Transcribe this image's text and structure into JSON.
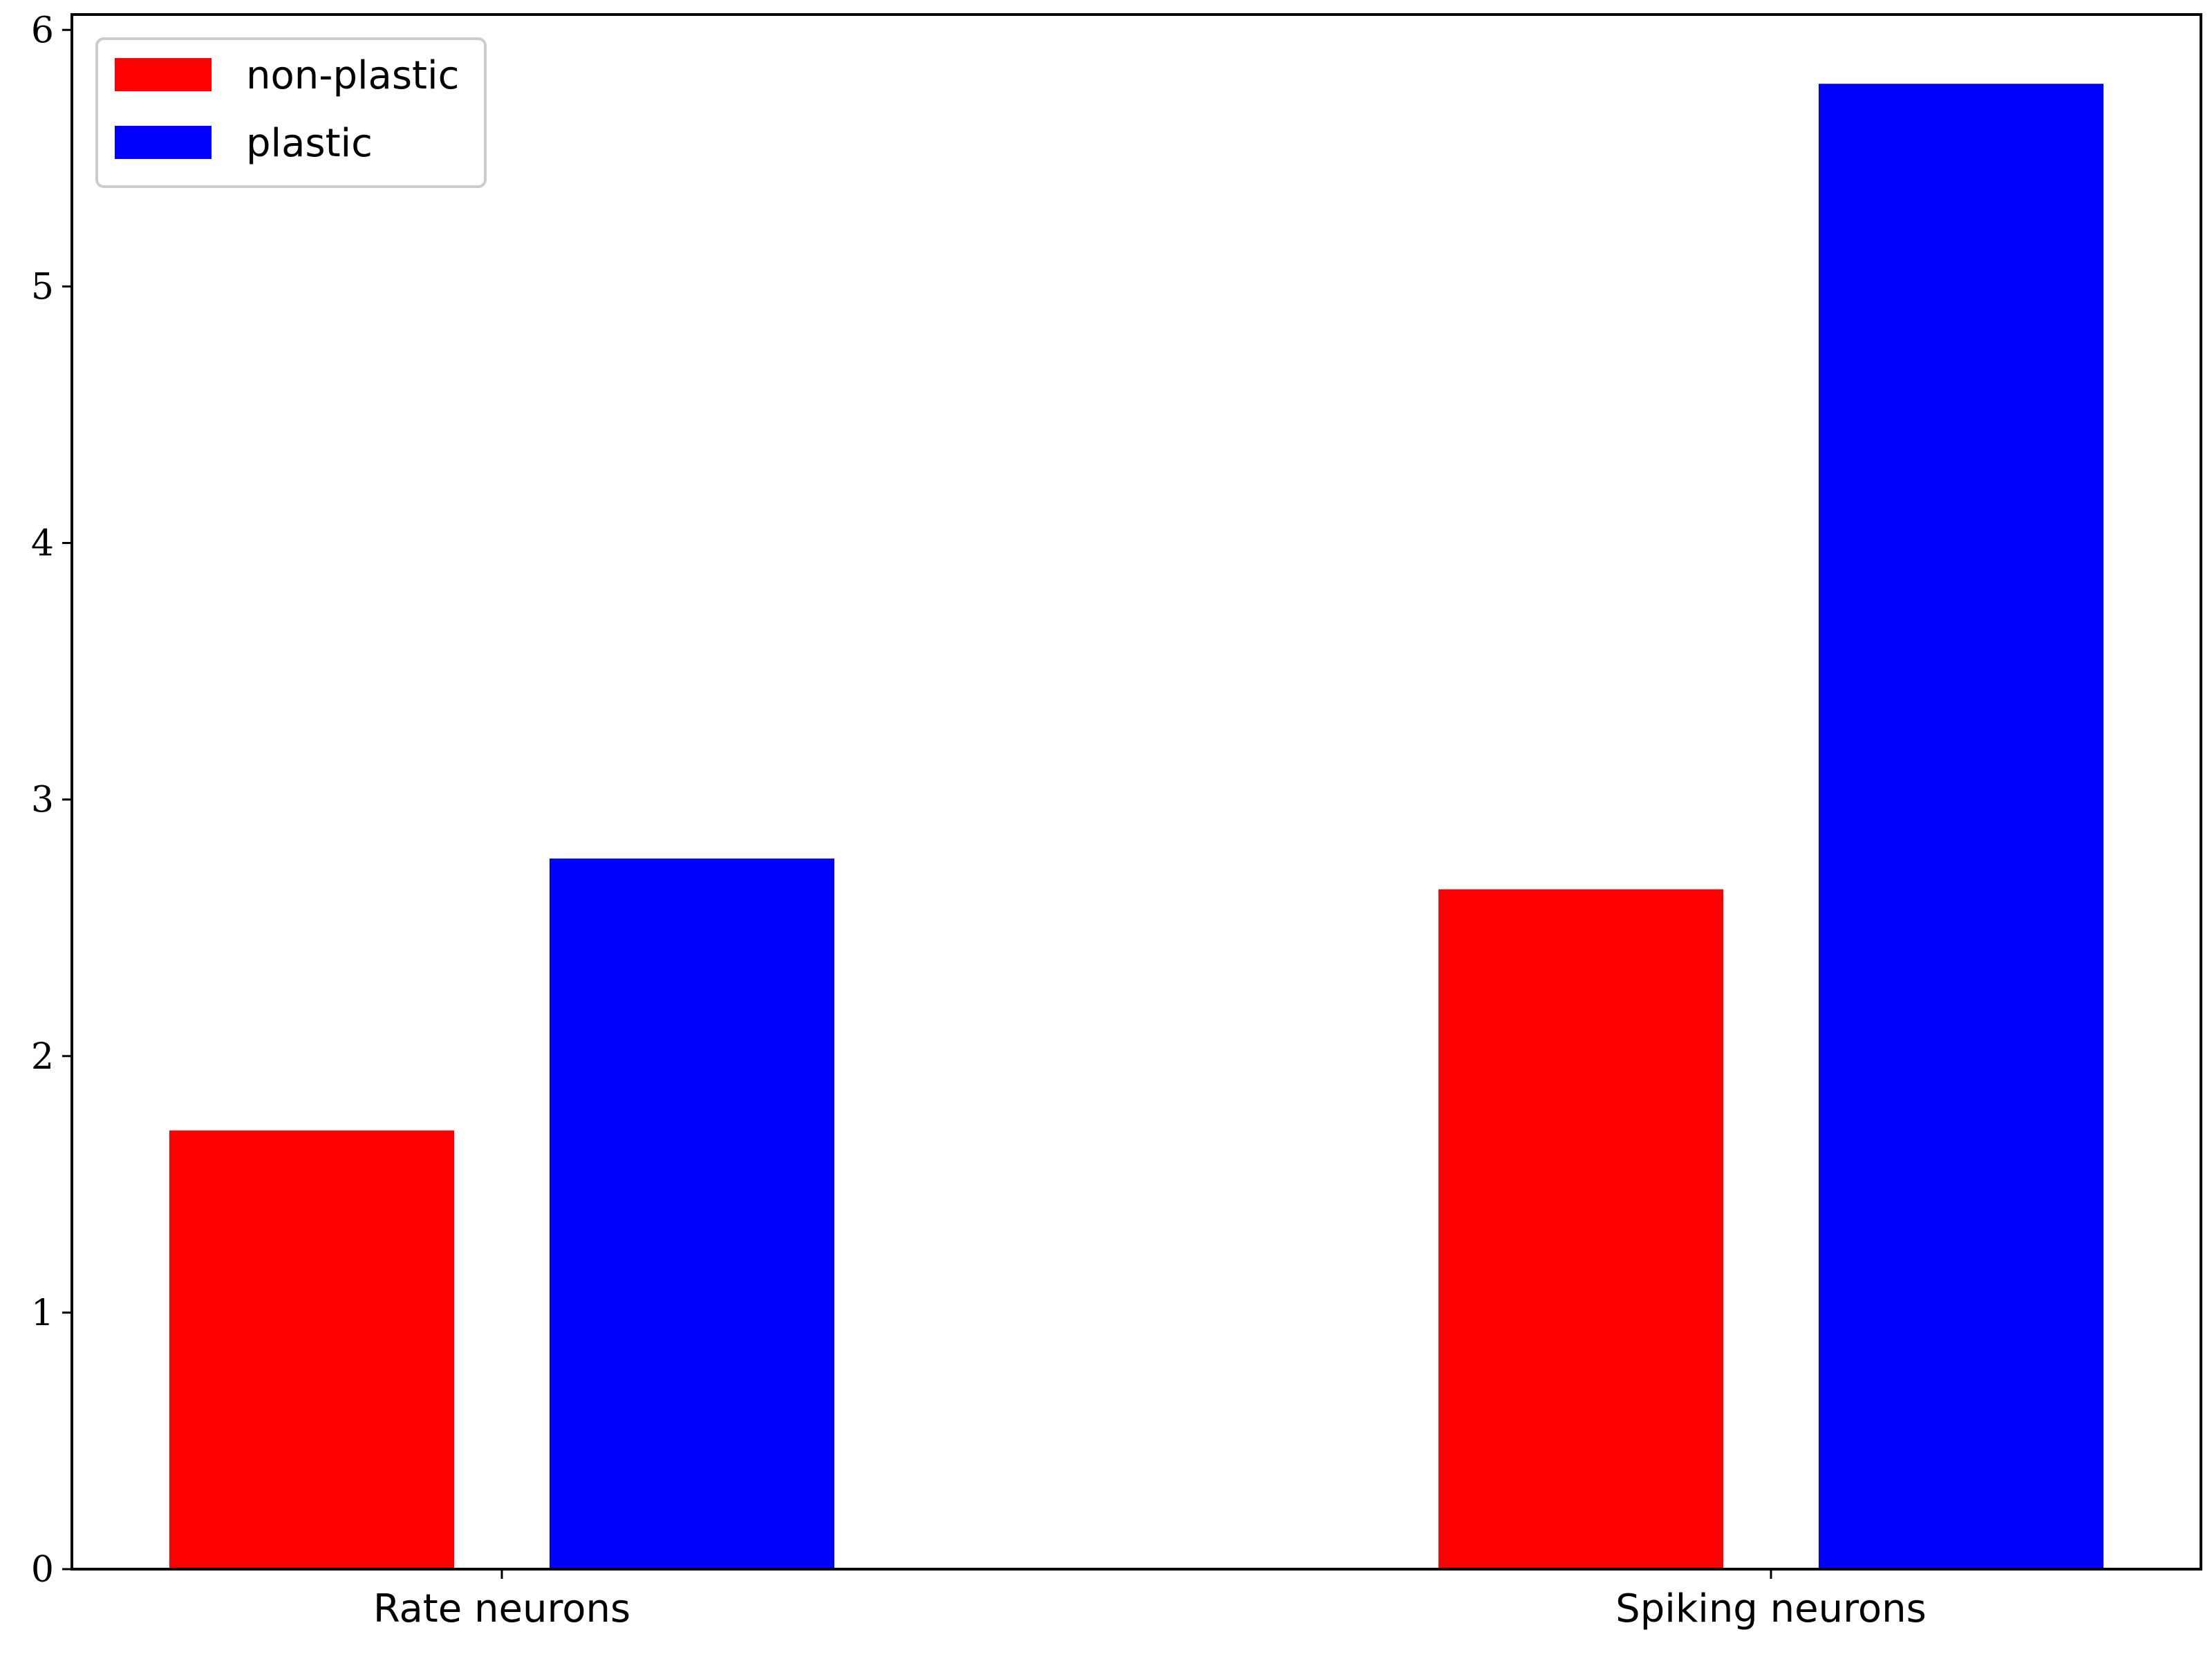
{
  "chart_data": {
    "type": "bar",
    "categories": [
      "Rate neurons",
      "Spiking neurons"
    ],
    "series": [
      {
        "name": "non-plastic",
        "color": "#ff0000",
        "values": [
          1.71,
          2.65
        ]
      },
      {
        "name": "plastic",
        "color": "#0000ff",
        "values": [
          2.77,
          5.79
        ]
      }
    ],
    "title": "",
    "xlabel": "",
    "ylabel": "",
    "ylim": [
      0,
      6.06
    ],
    "yticks": [
      "0",
      "1",
      "2",
      "3",
      "4",
      "5",
      "6"
    ],
    "grid": false,
    "legend_position": "top-left"
  }
}
